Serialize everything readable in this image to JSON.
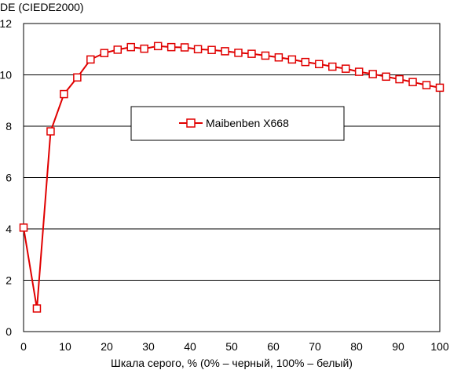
{
  "chart_data": {
    "type": "line",
    "title": "",
    "ylabel": "DE (CIEDE2000)",
    "xlabel": "Шкала серого, % (0% – черный, 100% – белый)",
    "xlim": [
      0,
      100
    ],
    "ylim": [
      0,
      12
    ],
    "xticks": [
      0,
      10,
      20,
      30,
      40,
      50,
      60,
      70,
      80,
      90,
      100
    ],
    "yticks": [
      0,
      2,
      4,
      6,
      8,
      10,
      12
    ],
    "grid": "horizontal",
    "legend_position": "center",
    "series": [
      {
        "name": "Maibenben X668",
        "color": "#e00000",
        "marker": "square",
        "x": [
          0,
          3.2,
          6.5,
          9.7,
          12.9,
          16.1,
          19.4,
          22.6,
          25.8,
          29.0,
          32.3,
          35.5,
          38.7,
          41.9,
          45.2,
          48.4,
          51.6,
          54.8,
          58.1,
          61.3,
          64.5,
          67.7,
          71.0,
          74.2,
          77.4,
          80.6,
          83.9,
          87.1,
          90.3,
          93.5,
          96.8,
          100
        ],
        "values": [
          4.05,
          0.9,
          7.8,
          9.25,
          9.9,
          10.6,
          10.85,
          10.98,
          11.08,
          11.02,
          11.12,
          11.08,
          11.07,
          11.0,
          10.97,
          10.92,
          10.86,
          10.82,
          10.75,
          10.68,
          10.6,
          10.5,
          10.42,
          10.32,
          10.24,
          10.12,
          10.03,
          9.93,
          9.83,
          9.72,
          9.6,
          9.5
        ]
      }
    ]
  }
}
